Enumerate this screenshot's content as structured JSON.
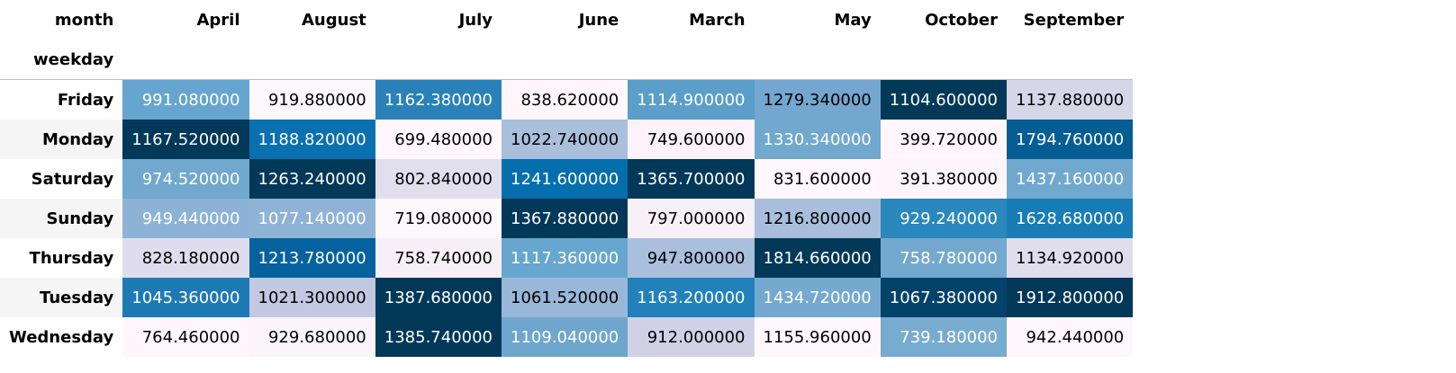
{
  "table": {
    "columns_label": "month",
    "index_label": "weekday",
    "columns": [
      "April",
      "August",
      "July",
      "June",
      "March",
      "May",
      "October",
      "September"
    ],
    "rows": [
      {
        "label": "Friday",
        "values": [
          "991.080000",
          "919.880000",
          "1162.380000",
          "838.620000",
          "1114.900000",
          "1279.340000",
          "1104.600000",
          "1137.880000"
        ]
      },
      {
        "label": "Monday",
        "values": [
          "1167.520000",
          "1188.820000",
          "699.480000",
          "1022.740000",
          "749.600000",
          "1330.340000",
          "399.720000",
          "1794.760000"
        ]
      },
      {
        "label": "Saturday",
        "values": [
          "974.520000",
          "1263.240000",
          "802.840000",
          "1241.600000",
          "1365.700000",
          "831.600000",
          "391.380000",
          "1437.160000"
        ]
      },
      {
        "label": "Sunday",
        "values": [
          "949.440000",
          "1077.140000",
          "719.080000",
          "1367.880000",
          "797.000000",
          "1216.800000",
          "929.240000",
          "1628.680000"
        ]
      },
      {
        "label": "Thursday",
        "values": [
          "828.180000",
          "1213.780000",
          "758.740000",
          "1117.360000",
          "947.800000",
          "1814.660000",
          "758.780000",
          "1134.920000"
        ]
      },
      {
        "label": "Tuesday",
        "values": [
          "1045.360000",
          "1021.300000",
          "1387.680000",
          "1061.520000",
          "1163.200000",
          "1434.720000",
          "1067.380000",
          "1912.800000"
        ]
      },
      {
        "label": "Wednesday",
        "values": [
          "764.460000",
          "929.680000",
          "1385.740000",
          "1109.040000",
          "912.000000",
          "1155.960000",
          "739.180000",
          "942.440000"
        ]
      }
    ],
    "colors": {
      "bg": [
        [
          "#66a5cf",
          "#fdf8fc",
          "#2a81b9",
          "#fff7fb",
          "#5a9ec9",
          "#73a7cf",
          "#023858",
          "#d7d6e9"
        ],
        [
          "#023858",
          "#0a70b0",
          "#fff7fb",
          "#a9bfdc",
          "#fcf3f9",
          "#71a8ce",
          "#fff7fb",
          "#045e93"
        ],
        [
          "#71a8ce",
          "#023858",
          "#e1dfee",
          "#056ead",
          "#023858",
          "#fff7fb",
          "#fdf5fa",
          "#71a8ce"
        ],
        [
          "#8cb3d5",
          "#8eb3d5",
          "#fdf8fc",
          "#023858",
          "#f8f0f7",
          "#a8bedc",
          "#2a88bc",
          "#187cb6"
        ],
        [
          "#dfdded",
          "#05629e",
          "#f6eff7",
          "#66a6cf",
          "#a9bfdc",
          "#023858",
          "#73a9cf",
          "#e0dded"
        ],
        [
          "#1e7ab5",
          "#c2c8e1",
          "#023858",
          "#99b8d8",
          "#2281bb",
          "#75a9cf",
          "#03426a",
          "#023858"
        ],
        [
          "#fff7fb",
          "#fbf4f9",
          "#023858",
          "#6ea6ce",
          "#d0d1e6",
          "#fff7fb",
          "#78abd0",
          "#fff7fb"
        ]
      ],
      "fg": [
        [
          "#ffffff",
          "#000000",
          "#ffffff",
          "#000000",
          "#ffffff",
          "#000000",
          "#ffffff",
          "#000000"
        ],
        [
          "#ffffff",
          "#ffffff",
          "#000000",
          "#000000",
          "#000000",
          "#ffffff",
          "#000000",
          "#ffffff"
        ],
        [
          "#ffffff",
          "#ffffff",
          "#000000",
          "#ffffff",
          "#ffffff",
          "#000000",
          "#000000",
          "#ffffff"
        ],
        [
          "#ffffff",
          "#ffffff",
          "#000000",
          "#ffffff",
          "#000000",
          "#000000",
          "#ffffff",
          "#ffffff"
        ],
        [
          "#000000",
          "#ffffff",
          "#000000",
          "#ffffff",
          "#000000",
          "#ffffff",
          "#ffffff",
          "#000000"
        ],
        [
          "#ffffff",
          "#000000",
          "#ffffff",
          "#000000",
          "#ffffff",
          "#ffffff",
          "#ffffff",
          "#ffffff"
        ],
        [
          "#000000",
          "#000000",
          "#ffffff",
          "#ffffff",
          "#000000",
          "#000000",
          "#ffffff",
          "#000000"
        ]
      ]
    }
  }
}
